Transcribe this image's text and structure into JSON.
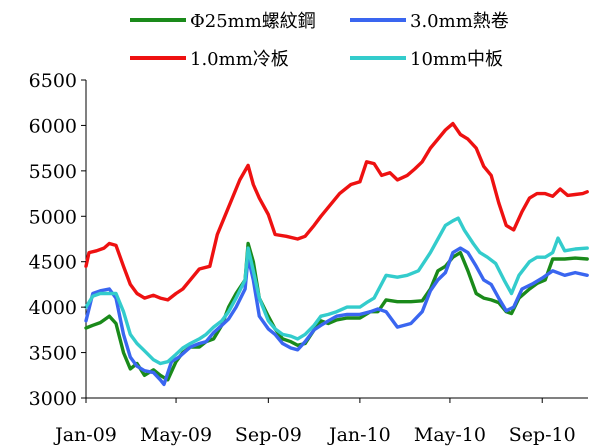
{
  "chart_data": {
    "type": "line",
    "x_ticks": [
      "Jan-09",
      "May-09",
      "Sep-09",
      "Jan-10",
      "May-10",
      "Sep-10"
    ],
    "x_range": [
      "2009-01",
      "2010-11"
    ],
    "y_ticks": [
      "6500",
      "6000",
      "5500",
      "5000",
      "4500",
      "4000",
      "3500",
      "3000"
    ],
    "ylim": [
      3000,
      6500
    ],
    "grid": false,
    "legend_position": "top",
    "series": [
      {
        "name": "Φ25mm螺紋鋼",
        "color": "#1a8a1a",
        "points": [
          [
            "2009-01-01",
            3770
          ],
          [
            "2009-01-10",
            3800
          ],
          [
            "2009-01-20",
            3830
          ],
          [
            "2009-02-01",
            3900
          ],
          [
            "2009-02-10",
            3820
          ],
          [
            "2009-02-20",
            3500
          ],
          [
            "2009-03-01",
            3320
          ],
          [
            "2009-03-10",
            3380
          ],
          [
            "2009-03-20",
            3250
          ],
          [
            "2009-04-01",
            3310
          ],
          [
            "2009-04-10",
            3250
          ],
          [
            "2009-04-20",
            3200
          ],
          [
            "2009-05-01",
            3400
          ],
          [
            "2009-05-10",
            3500
          ],
          [
            "2009-05-20",
            3560
          ],
          [
            "2009-06-01",
            3560
          ],
          [
            "2009-06-10",
            3620
          ],
          [
            "2009-06-20",
            3650
          ],
          [
            "2009-07-01",
            3800
          ],
          [
            "2009-07-10",
            4000
          ],
          [
            "2009-07-20",
            4150
          ],
          [
            "2009-08-01",
            4300
          ],
          [
            "2009-08-05",
            4700
          ],
          [
            "2009-08-12",
            4500
          ],
          [
            "2009-08-20",
            4100
          ],
          [
            "2009-09-01",
            3900
          ],
          [
            "2009-09-10",
            3760
          ],
          [
            "2009-09-20",
            3650
          ],
          [
            "2009-10-01",
            3620
          ],
          [
            "2009-10-10",
            3580
          ],
          [
            "2009-10-20",
            3600
          ],
          [
            "2009-11-01",
            3750
          ],
          [
            "2009-11-10",
            3850
          ],
          [
            "2009-11-20",
            3820
          ],
          [
            "2009-12-01",
            3860
          ],
          [
            "2009-12-15",
            3880
          ],
          [
            "2010-01-01",
            3880
          ],
          [
            "2010-01-15",
            3950
          ],
          [
            "2010-01-25",
            3950
          ],
          [
            "2010-02-05",
            4080
          ],
          [
            "2010-02-20",
            4060
          ],
          [
            "2010-03-10",
            4060
          ],
          [
            "2010-03-25",
            4070
          ],
          [
            "2010-04-05",
            4200
          ],
          [
            "2010-04-15",
            4400
          ],
          [
            "2010-04-25",
            4450
          ],
          [
            "2010-05-05",
            4550
          ],
          [
            "2010-05-15",
            4600
          ],
          [
            "2010-05-25",
            4400
          ],
          [
            "2010-06-05",
            4150
          ],
          [
            "2010-06-15",
            4100
          ],
          [
            "2010-06-25",
            4080
          ],
          [
            "2010-07-05",
            4050
          ],
          [
            "2010-07-15",
            3950
          ],
          [
            "2010-07-22",
            3930
          ],
          [
            "2010-08-01",
            4100
          ],
          [
            "2010-08-15",
            4200
          ],
          [
            "2010-08-25",
            4260
          ],
          [
            "2010-09-05",
            4300
          ],
          [
            "2010-09-15",
            4530
          ],
          [
            "2010-10-01",
            4530
          ],
          [
            "2010-10-15",
            4540
          ],
          [
            "2010-10-31",
            4530
          ]
        ]
      },
      {
        "name": "3.0mm熱卷",
        "color": "#3a66f0",
        "points": [
          [
            "2009-01-01",
            3850
          ],
          [
            "2009-01-10",
            4150
          ],
          [
            "2009-01-20",
            4180
          ],
          [
            "2009-02-01",
            4200
          ],
          [
            "2009-02-10",
            4100
          ],
          [
            "2009-02-20",
            3700
          ],
          [
            "2009-03-01",
            3450
          ],
          [
            "2009-03-10",
            3350
          ],
          [
            "2009-03-20",
            3300
          ],
          [
            "2009-04-01",
            3280
          ],
          [
            "2009-04-10",
            3200
          ],
          [
            "2009-04-15",
            3150
          ],
          [
            "2009-04-25",
            3400
          ],
          [
            "2009-05-05",
            3450
          ],
          [
            "2009-05-20",
            3560
          ],
          [
            "2009-06-01",
            3600
          ],
          [
            "2009-06-10",
            3620
          ],
          [
            "2009-06-20",
            3720
          ],
          [
            "2009-07-01",
            3800
          ],
          [
            "2009-07-10",
            3870
          ],
          [
            "2009-07-20",
            4000
          ],
          [
            "2009-08-01",
            4200
          ],
          [
            "2009-08-05",
            4550
          ],
          [
            "2009-08-12",
            4300
          ],
          [
            "2009-08-20",
            3900
          ],
          [
            "2009-09-01",
            3760
          ],
          [
            "2009-09-10",
            3700
          ],
          [
            "2009-09-20",
            3600
          ],
          [
            "2009-10-01",
            3550
          ],
          [
            "2009-10-10",
            3530
          ],
          [
            "2009-10-20",
            3620
          ],
          [
            "2009-11-01",
            3750
          ],
          [
            "2009-11-10",
            3800
          ],
          [
            "2009-11-20",
            3850
          ],
          [
            "2009-12-01",
            3900
          ],
          [
            "2009-12-15",
            3920
          ],
          [
            "2010-01-01",
            3920
          ],
          [
            "2010-01-15",
            3950
          ],
          [
            "2010-01-25",
            3980
          ],
          [
            "2010-02-05",
            3950
          ],
          [
            "2010-02-20",
            3780
          ],
          [
            "2010-03-10",
            3820
          ],
          [
            "2010-03-25",
            3950
          ],
          [
            "2010-04-05",
            4180
          ],
          [
            "2010-04-15",
            4300
          ],
          [
            "2010-04-25",
            4380
          ],
          [
            "2010-05-05",
            4600
          ],
          [
            "2010-05-15",
            4650
          ],
          [
            "2010-05-25",
            4600
          ],
          [
            "2010-06-05",
            4450
          ],
          [
            "2010-06-15",
            4300
          ],
          [
            "2010-06-25",
            4250
          ],
          [
            "2010-07-05",
            4100
          ],
          [
            "2010-07-15",
            3960
          ],
          [
            "2010-07-25",
            4000
          ],
          [
            "2010-08-05",
            4200
          ],
          [
            "2010-08-20",
            4260
          ],
          [
            "2010-09-01",
            4320
          ],
          [
            "2010-09-15",
            4400
          ],
          [
            "2010-10-01",
            4350
          ],
          [
            "2010-10-15",
            4380
          ],
          [
            "2010-10-31",
            4350
          ]
        ]
      },
      {
        "name": "1.0mm冷板",
        "color": "#ee1111",
        "points": [
          [
            "2009-01-01",
            4450
          ],
          [
            "2009-01-05",
            4600
          ],
          [
            "2009-01-15",
            4620
          ],
          [
            "2009-01-25",
            4650
          ],
          [
            "2009-02-01",
            4700
          ],
          [
            "2009-02-10",
            4680
          ],
          [
            "2009-02-20",
            4450
          ],
          [
            "2009-03-01",
            4250
          ],
          [
            "2009-03-10",
            4150
          ],
          [
            "2009-03-20",
            4100
          ],
          [
            "2009-04-01",
            4130
          ],
          [
            "2009-04-10",
            4100
          ],
          [
            "2009-04-20",
            4080
          ],
          [
            "2009-05-01",
            4150
          ],
          [
            "2009-05-10",
            4200
          ],
          [
            "2009-05-20",
            4300
          ],
          [
            "2009-06-01",
            4420
          ],
          [
            "2009-06-15",
            4450
          ],
          [
            "2009-06-25",
            4800
          ],
          [
            "2009-07-05",
            5000
          ],
          [
            "2009-07-15",
            5200
          ],
          [
            "2009-07-25",
            5400
          ],
          [
            "2009-08-05",
            5560
          ],
          [
            "2009-08-12",
            5350
          ],
          [
            "2009-08-20",
            5200
          ],
          [
            "2009-09-01",
            5020
          ],
          [
            "2009-09-10",
            4800
          ],
          [
            "2009-09-25",
            4780
          ],
          [
            "2009-10-10",
            4750
          ],
          [
            "2009-10-20",
            4780
          ],
          [
            "2009-11-01",
            4900
          ],
          [
            "2009-11-10",
            5000
          ],
          [
            "2009-11-20",
            5100
          ],
          [
            "2009-12-05",
            5250
          ],
          [
            "2009-12-20",
            5350
          ],
          [
            "2010-01-01",
            5380
          ],
          [
            "2010-01-10",
            5600
          ],
          [
            "2010-01-20",
            5580
          ],
          [
            "2010-01-30",
            5450
          ],
          [
            "2010-02-10",
            5480
          ],
          [
            "2010-02-20",
            5400
          ],
          [
            "2010-03-05",
            5450
          ],
          [
            "2010-03-15",
            5520
          ],
          [
            "2010-03-25",
            5600
          ],
          [
            "2010-04-05",
            5750
          ],
          [
            "2010-04-15",
            5850
          ],
          [
            "2010-04-25",
            5950
          ],
          [
            "2010-05-05",
            6020
          ],
          [
            "2010-05-15",
            5900
          ],
          [
            "2010-05-25",
            5850
          ],
          [
            "2010-06-05",
            5750
          ],
          [
            "2010-06-15",
            5550
          ],
          [
            "2010-06-25",
            5450
          ],
          [
            "2010-07-05",
            5150
          ],
          [
            "2010-07-15",
            4900
          ],
          [
            "2010-07-25",
            4850
          ],
          [
            "2010-08-05",
            5050
          ],
          [
            "2010-08-15",
            5200
          ],
          [
            "2010-08-25",
            5250
          ],
          [
            "2010-09-05",
            5250
          ],
          [
            "2010-09-15",
            5220
          ],
          [
            "2010-09-25",
            5300
          ],
          [
            "2010-10-05",
            5230
          ],
          [
            "2010-10-15",
            5240
          ],
          [
            "2010-10-25",
            5250
          ],
          [
            "2010-10-31",
            5270
          ]
        ]
      },
      {
        "name": "10mm中板",
        "color": "#33cccc",
        "points": [
          [
            "2009-01-01",
            4000
          ],
          [
            "2009-01-10",
            4120
          ],
          [
            "2009-01-20",
            4150
          ],
          [
            "2009-02-01",
            4150
          ],
          [
            "2009-02-10",
            4150
          ],
          [
            "2009-02-20",
            3950
          ],
          [
            "2009-03-01",
            3700
          ],
          [
            "2009-03-10",
            3600
          ],
          [
            "2009-03-20",
            3520
          ],
          [
            "2009-04-01",
            3420
          ],
          [
            "2009-04-10",
            3380
          ],
          [
            "2009-04-20",
            3400
          ],
          [
            "2009-05-01",
            3480
          ],
          [
            "2009-05-10",
            3550
          ],
          [
            "2009-05-20",
            3600
          ],
          [
            "2009-06-01",
            3650
          ],
          [
            "2009-06-10",
            3700
          ],
          [
            "2009-06-20",
            3780
          ],
          [
            "2009-07-01",
            3850
          ],
          [
            "2009-07-10",
            3950
          ],
          [
            "2009-07-20",
            4100
          ],
          [
            "2009-08-01",
            4300
          ],
          [
            "2009-08-05",
            4650
          ],
          [
            "2009-08-12",
            4400
          ],
          [
            "2009-08-20",
            4100
          ],
          [
            "2009-09-01",
            3850
          ],
          [
            "2009-09-10",
            3760
          ],
          [
            "2009-09-20",
            3700
          ],
          [
            "2009-10-01",
            3680
          ],
          [
            "2009-10-10",
            3650
          ],
          [
            "2009-10-20",
            3700
          ],
          [
            "2009-11-01",
            3800
          ],
          [
            "2009-11-10",
            3900
          ],
          [
            "2009-11-20",
            3920
          ],
          [
            "2009-12-01",
            3950
          ],
          [
            "2009-12-15",
            4000
          ],
          [
            "2010-01-01",
            4000
          ],
          [
            "2010-01-10",
            4050
          ],
          [
            "2010-01-20",
            4100
          ],
          [
            "2010-02-05",
            4350
          ],
          [
            "2010-02-20",
            4330
          ],
          [
            "2010-03-05",
            4350
          ],
          [
            "2010-03-20",
            4400
          ],
          [
            "2010-04-05",
            4600
          ],
          [
            "2010-04-15",
            4750
          ],
          [
            "2010-04-25",
            4900
          ],
          [
            "2010-05-05",
            4950
          ],
          [
            "2010-05-12",
            4980
          ],
          [
            "2010-05-20",
            4850
          ],
          [
            "2010-06-01",
            4700
          ],
          [
            "2010-06-10",
            4600
          ],
          [
            "2010-06-20",
            4550
          ],
          [
            "2010-07-01",
            4480
          ],
          [
            "2010-07-12",
            4300
          ],
          [
            "2010-07-22",
            4150
          ],
          [
            "2010-08-01",
            4350
          ],
          [
            "2010-08-15",
            4500
          ],
          [
            "2010-08-25",
            4550
          ],
          [
            "2010-09-05",
            4550
          ],
          [
            "2010-09-15",
            4600
          ],
          [
            "2010-09-22",
            4760
          ],
          [
            "2010-10-01",
            4620
          ],
          [
            "2010-10-15",
            4640
          ],
          [
            "2010-10-31",
            4650
          ]
        ]
      }
    ]
  }
}
